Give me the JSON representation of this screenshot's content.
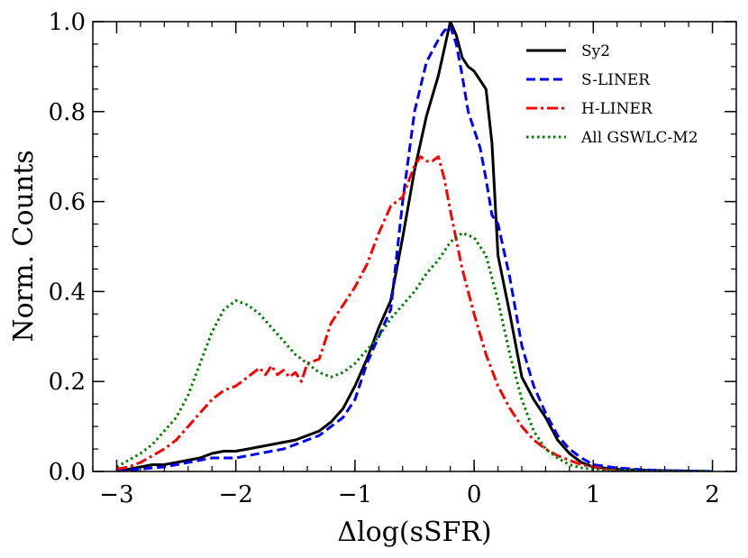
{
  "chart_data": {
    "type": "line",
    "title": "",
    "xlabel": "Δlog(sSFR)",
    "ylabel": "Norm. Counts",
    "xlim": [
      -3.2,
      2.2
    ],
    "ylim": [
      0.0,
      1.0
    ],
    "xticks": [
      -3,
      -2,
      -1,
      0,
      1,
      2
    ],
    "xtick_labels": [
      "−3",
      "−2",
      "−1",
      "0",
      "1",
      "2"
    ],
    "yticks": [
      0.0,
      0.2,
      0.4,
      0.6,
      0.8,
      1.0
    ],
    "ytick_labels": [
      "0.0",
      "0.2",
      "0.4",
      "0.6",
      "0.8",
      "1.0"
    ],
    "grid": false,
    "legend_position": "top-right",
    "series": [
      {
        "name": "Sy2",
        "color": "#000000",
        "dash": "solid",
        "x": [
          -3.0,
          -2.9,
          -2.8,
          -2.7,
          -2.6,
          -2.5,
          -2.4,
          -2.3,
          -2.2,
          -2.1,
          -2.0,
          -1.9,
          -1.8,
          -1.7,
          -1.6,
          -1.5,
          -1.4,
          -1.3,
          -1.2,
          -1.1,
          -1.0,
          -0.9,
          -0.8,
          -0.7,
          -0.6,
          -0.5,
          -0.4,
          -0.3,
          -0.2,
          -0.15,
          -0.1,
          -0.05,
          0.0,
          0.05,
          0.1,
          0.15,
          0.2,
          0.3,
          0.4,
          0.5,
          0.6,
          0.7,
          0.8,
          0.9,
          1.0,
          1.2,
          1.4,
          1.6,
          1.8,
          2.0
        ],
        "y": [
          0.0,
          0.005,
          0.01,
          0.015,
          0.015,
          0.02,
          0.025,
          0.03,
          0.04,
          0.045,
          0.045,
          0.05,
          0.055,
          0.06,
          0.065,
          0.07,
          0.08,
          0.09,
          0.11,
          0.14,
          0.19,
          0.25,
          0.32,
          0.38,
          0.52,
          0.67,
          0.79,
          0.88,
          1.0,
          0.97,
          0.92,
          0.9,
          0.89,
          0.87,
          0.85,
          0.73,
          0.48,
          0.35,
          0.21,
          0.16,
          0.12,
          0.07,
          0.04,
          0.02,
          0.01,
          0.005,
          0.003,
          0.002,
          0.001,
          0.0
        ]
      },
      {
        "name": "S-LINER",
        "color": "#0000ff",
        "dash": "dashed",
        "x": [
          -3.0,
          -2.9,
          -2.8,
          -2.7,
          -2.6,
          -2.5,
          -2.4,
          -2.3,
          -2.2,
          -2.1,
          -2.0,
          -1.9,
          -1.8,
          -1.7,
          -1.6,
          -1.5,
          -1.4,
          -1.3,
          -1.2,
          -1.1,
          -1.0,
          -0.9,
          -0.8,
          -0.7,
          -0.6,
          -0.5,
          -0.4,
          -0.3,
          -0.25,
          -0.2,
          -0.15,
          -0.1,
          -0.05,
          0.0,
          0.05,
          0.1,
          0.15,
          0.2,
          0.3,
          0.4,
          0.5,
          0.6,
          0.7,
          0.8,
          0.9,
          1.0,
          1.2,
          1.4,
          1.6,
          1.8,
          2.0
        ],
        "y": [
          0.0,
          0.003,
          0.005,
          0.008,
          0.01,
          0.015,
          0.02,
          0.025,
          0.03,
          0.03,
          0.03,
          0.035,
          0.04,
          0.045,
          0.05,
          0.06,
          0.07,
          0.08,
          0.1,
          0.12,
          0.16,
          0.24,
          0.3,
          0.36,
          0.6,
          0.8,
          0.91,
          0.96,
          0.98,
          0.99,
          0.95,
          0.88,
          0.8,
          0.76,
          0.72,
          0.65,
          0.57,
          0.55,
          0.43,
          0.28,
          0.19,
          0.13,
          0.08,
          0.05,
          0.03,
          0.015,
          0.008,
          0.004,
          0.002,
          0.001,
          0.0
        ]
      },
      {
        "name": "H-LINER",
        "color": "#ff0000",
        "dash": "dashdot",
        "x": [
          -3.0,
          -2.9,
          -2.8,
          -2.7,
          -2.6,
          -2.5,
          -2.4,
          -2.3,
          -2.2,
          -2.1,
          -2.0,
          -1.9,
          -1.8,
          -1.75,
          -1.7,
          -1.65,
          -1.6,
          -1.55,
          -1.5,
          -1.45,
          -1.4,
          -1.3,
          -1.2,
          -1.1,
          -1.0,
          -0.9,
          -0.8,
          -0.7,
          -0.6,
          -0.5,
          -0.45,
          -0.4,
          -0.35,
          -0.3,
          -0.25,
          -0.2,
          -0.1,
          0.0,
          0.1,
          0.2,
          0.3,
          0.4,
          0.5,
          0.6,
          0.7,
          0.8,
          0.9,
          1.0,
          1.1,
          1.2
        ],
        "y": [
          0.005,
          0.01,
          0.02,
          0.035,
          0.05,
          0.07,
          0.1,
          0.13,
          0.16,
          0.18,
          0.19,
          0.21,
          0.23,
          0.215,
          0.235,
          0.215,
          0.225,
          0.21,
          0.22,
          0.2,
          0.24,
          0.25,
          0.33,
          0.37,
          0.41,
          0.46,
          0.53,
          0.59,
          0.61,
          0.68,
          0.7,
          0.69,
          0.69,
          0.7,
          0.65,
          0.58,
          0.45,
          0.35,
          0.26,
          0.19,
          0.14,
          0.1,
          0.07,
          0.05,
          0.035,
          0.025,
          0.015,
          0.01,
          0.005,
          0.002
        ]
      },
      {
        "name": "All GSWLC-M2",
        "color": "#008000",
        "dash": "dotted",
        "x": [
          -3.0,
          -2.9,
          -2.8,
          -2.7,
          -2.6,
          -2.5,
          -2.4,
          -2.3,
          -2.2,
          -2.1,
          -2.0,
          -1.9,
          -1.8,
          -1.7,
          -1.6,
          -1.5,
          -1.4,
          -1.3,
          -1.2,
          -1.1,
          -1.0,
          -0.9,
          -0.8,
          -0.7,
          -0.6,
          -0.5,
          -0.4,
          -0.3,
          -0.2,
          -0.1,
          0.0,
          0.1,
          0.2,
          0.3,
          0.4,
          0.5,
          0.6,
          0.7,
          0.8,
          0.9,
          1.0,
          1.2,
          1.4,
          1.6,
          1.8,
          2.0
        ],
        "y": [
          0.01,
          0.025,
          0.04,
          0.06,
          0.09,
          0.12,
          0.17,
          0.24,
          0.31,
          0.36,
          0.38,
          0.37,
          0.35,
          0.32,
          0.29,
          0.26,
          0.24,
          0.22,
          0.21,
          0.22,
          0.24,
          0.27,
          0.3,
          0.34,
          0.37,
          0.4,
          0.44,
          0.47,
          0.51,
          0.53,
          0.52,
          0.48,
          0.38,
          0.26,
          0.16,
          0.09,
          0.05,
          0.03,
          0.015,
          0.008,
          0.005,
          0.003,
          0.002,
          0.001,
          0.0,
          0.0
        ]
      }
    ]
  }
}
